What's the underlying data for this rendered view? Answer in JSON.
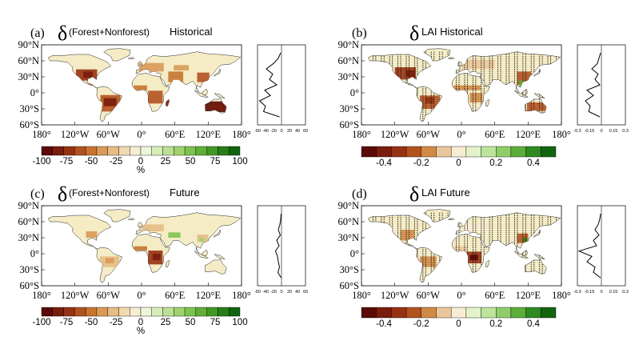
{
  "panels": [
    {
      "letter": "(a)",
      "delta": "δ",
      "title_small": "(Forest+Nonforest)",
      "title_large": "Historical",
      "lat_ticks": [
        "90°N",
        "60°N",
        "30°N",
        "0°",
        "30°S",
        "60°S"
      ],
      "lon_ticks": [
        "180°",
        "120°W",
        "60°W",
        "0°",
        "60°E",
        "120°E",
        "180°"
      ],
      "profile_ticks": [
        "-60",
        "-40",
        "-20",
        "0",
        "20",
        "40",
        "60"
      ],
      "colorbar": {
        "labels": [
          "-100",
          "-75",
          "-50",
          "-25",
          "0",
          "25",
          "50",
          "75",
          "100"
        ],
        "unit": "%",
        "colors": [
          "#5b0a05",
          "#7a1d0c",
          "#963212",
          "#b2521f",
          "#c8742f",
          "#d89a55",
          "#e6bd84",
          "#f1d9b0",
          "#f8ecd2",
          "#ecf6d8",
          "#d6edb8",
          "#bbe093",
          "#9ed36f",
          "#7fc34f",
          "#60af37",
          "#429825",
          "#287d17",
          "#136410"
        ]
      }
    },
    {
      "letter": "(b)",
      "delta": "δ",
      "title_small": "",
      "title_large": "LAI  Historical",
      "lat_ticks": [
        "90°N",
        "60°N",
        "30°N",
        "0°",
        "30°S",
        "60°S"
      ],
      "lon_ticks": [
        "180°",
        "120°W",
        "60°W",
        "0°",
        "60°E",
        "120°E",
        "180°"
      ],
      "profile_ticks": [
        "-0.3",
        "-0.15",
        "0",
        "0.15",
        "0.3"
      ],
      "colorbar": {
        "labels": [
          "-0.4",
          "-0.2",
          "0",
          "0.2",
          "0.4"
        ],
        "unit": "",
        "colors": [
          "#5b0a05",
          "#7a1d0c",
          "#963212",
          "#b2521f",
          "#d08a45",
          "#eac79a",
          "#f8ecd2",
          "#e3f2c8",
          "#bde49b",
          "#8fcd68",
          "#5cae3a",
          "#2e8a20",
          "#136410"
        ]
      }
    },
    {
      "letter": "(c)",
      "delta": "δ",
      "title_small": "(Forest+Nonforest)",
      "title_large": "Future",
      "lat_ticks": [
        "90°N",
        "60°N",
        "30°N",
        "0°",
        "30°S",
        "60°S"
      ],
      "lon_ticks": [
        "180°",
        "120°W",
        "60°W",
        "0°",
        "60°E",
        "120°E",
        "180°"
      ],
      "profile_ticks": [
        "-60",
        "-40",
        "-20",
        "0",
        "20",
        "40",
        "60"
      ],
      "colorbar": {
        "labels": [
          "-100",
          "-75",
          "-50",
          "-25",
          "0",
          "25",
          "50",
          "75",
          "100"
        ],
        "unit": "%",
        "colors": [
          "#5b0a05",
          "#7a1d0c",
          "#963212",
          "#b2521f",
          "#c8742f",
          "#d89a55",
          "#e6bd84",
          "#f1d9b0",
          "#f8ecd2",
          "#ecf6d8",
          "#d6edb8",
          "#bbe093",
          "#9ed36f",
          "#7fc34f",
          "#60af37",
          "#429825",
          "#287d17",
          "#136410"
        ]
      }
    },
    {
      "letter": "(d)",
      "delta": "δ",
      "title_small": "",
      "title_large": "LAI  Future",
      "lat_ticks": [
        "90°N",
        "60°N",
        "30°N",
        "0°",
        "30°S",
        "60°S"
      ],
      "lon_ticks": [
        "180°",
        "120°W",
        "60°W",
        "0°",
        "60°E",
        "120°E",
        "180°"
      ],
      "profile_ticks": [
        "-0.3",
        "-0.15",
        "0",
        "0.15",
        "0.3"
      ],
      "colorbar": {
        "labels": [
          "-0.4",
          "-0.2",
          "0",
          "0.2",
          "0.4"
        ],
        "unit": "",
        "colors": [
          "#5b0a05",
          "#7a1d0c",
          "#963212",
          "#b2521f",
          "#d08a45",
          "#eac79a",
          "#f8ecd2",
          "#e3f2c8",
          "#bde49b",
          "#8fcd68",
          "#5cae3a",
          "#2e8a20",
          "#136410"
        ]
      }
    }
  ],
  "chart_data": [
    {
      "type": "heatmap",
      "panel": "(a)",
      "title": "δ(Forest+Nonforest) Historical",
      "unit": "%",
      "xlim": [
        -180,
        180
      ],
      "ylim": [
        -60,
        90
      ],
      "colorbar_range": [
        -100,
        100
      ],
      "zonal_profile": {
        "lat": [
          75,
          65,
          55,
          45,
          35,
          25,
          15,
          5,
          -5,
          -15,
          -25,
          -35,
          -45
        ],
        "value": [
          -2,
          -8,
          -20,
          -38,
          -22,
          -30,
          -12,
          -42,
          -28,
          -55,
          -40,
          -45,
          -5
        ]
      }
    },
    {
      "type": "heatmap",
      "panel": "(b)",
      "title": "δLAI Historical",
      "unit": "",
      "xlim": [
        -180,
        180
      ],
      "ylim": [
        -60,
        90
      ],
      "colorbar_range": [
        -0.5,
        0.5
      ],
      "zonal_profile": {
        "lat": [
          75,
          65,
          55,
          45,
          35,
          25,
          15,
          5,
          -5,
          -15,
          -25,
          -35,
          -45
        ],
        "value": [
          -0.01,
          -0.03,
          -0.05,
          -0.12,
          -0.04,
          -0.08,
          -0.02,
          -0.18,
          -0.1,
          -0.2,
          -0.14,
          -0.16,
          -0.02
        ]
      }
    },
    {
      "type": "heatmap",
      "panel": "(c)",
      "title": "δ(Forest+Nonforest) Future",
      "unit": "%",
      "xlim": [
        -180,
        180
      ],
      "ylim": [
        -60,
        90
      ],
      "colorbar_range": [
        -100,
        100
      ],
      "zonal_profile": {
        "lat": [
          75,
          65,
          55,
          45,
          35,
          25,
          15,
          5,
          -5,
          -15,
          -25,
          -35,
          -45
        ],
        "value": [
          -1,
          -2,
          -4,
          -8,
          -3,
          -12,
          -6,
          -15,
          -10,
          -8,
          -5,
          -9,
          -1
        ]
      }
    },
    {
      "type": "heatmap",
      "panel": "(d)",
      "title": "δLAI Future",
      "unit": "",
      "xlim": [
        -180,
        180
      ],
      "ylim": [
        -60,
        90
      ],
      "colorbar_range": [
        -0.5,
        0.5
      ],
      "zonal_profile": {
        "lat": [
          75,
          65,
          55,
          45,
          35,
          25,
          15,
          5,
          -5,
          -15,
          -25,
          -35,
          -45
        ],
        "value": [
          -0.01,
          -0.02,
          -0.04,
          -0.08,
          -0.03,
          -0.1,
          -0.06,
          -0.28,
          -0.12,
          -0.18,
          -0.08,
          -0.1,
          -0.01
        ]
      }
    }
  ]
}
